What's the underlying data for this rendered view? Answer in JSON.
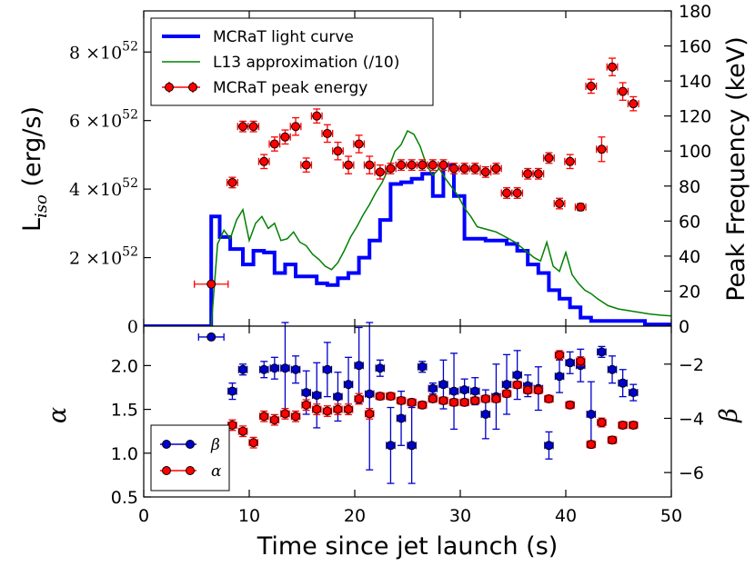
{
  "chart_data": [
    {
      "type": "line",
      "panel": "top",
      "xlabel": "Time since jet launch (s)",
      "ylabel_left": {
        "main": "L",
        "sub": "iso",
        "unit": " (erg/s)"
      },
      "ylabel_right": "Peak Frequency (keV)",
      "xlim": [
        0,
        50
      ],
      "ylim_left": [
        0,
        9.2e+52
      ],
      "ylim_right": [
        0,
        180
      ],
      "x_ticks": [
        0,
        10,
        20,
        30,
        40,
        50
      ],
      "x_tick_labels": [
        "0",
        "10",
        "20",
        "30",
        "40",
        "50"
      ],
      "left_ticks": [
        {
          "value": 0,
          "label": "0",
          "base": "",
          "exp": ""
        },
        {
          "value": 2e+52,
          "label": "",
          "base": "2 ×10",
          "exp": "52"
        },
        {
          "value": 4e+52,
          "label": "",
          "base": "4 ×10",
          "exp": "52"
        },
        {
          "value": 6e+52,
          "label": "",
          "base": "6 ×10",
          "exp": "52"
        },
        {
          "value": 8e+52,
          "label": "",
          "base": "8 ×10",
          "exp": "52"
        }
      ],
      "right_ticks": [
        0,
        20,
        40,
        60,
        80,
        100,
        120,
        140,
        160,
        180
      ],
      "right_tick_labels": [
        "0",
        "20",
        "40",
        "60",
        "80",
        "100",
        "120",
        "140",
        "160",
        "180"
      ],
      "legend": {
        "position": "top-left",
        "entries": [
          "MCRaT light curve",
          "L13 approximation (/10)",
          "MCRaT peak energy"
        ]
      },
      "series": [
        {
          "name": "MCRaT light curve",
          "style": "step",
          "color": "#0000ff",
          "axis": "left",
          "x": [
            0,
            6.4,
            6.4,
            7.2,
            7.2,
            8.2,
            8.2,
            9.4,
            9.4,
            10.4,
            10.4,
            11.4,
            11.4,
            12.4,
            12.4,
            13.4,
            13.4,
            14.4,
            14.4,
            16.4,
            16.4,
            17.4,
            17.4,
            18.4,
            18.4,
            19.4,
            19.4,
            20.4,
            20.4,
            21.4,
            21.4,
            22.4,
            22.4,
            23.4,
            23.4,
            24.4,
            24.4,
            25.4,
            25.4,
            26.4,
            26.4,
            27.4,
            27.4,
            28.4,
            28.4,
            29.4,
            29.4,
            30.4,
            30.4,
            32.4,
            32.4,
            34.4,
            34.4,
            35.4,
            35.4,
            36.4,
            36.4,
            37.4,
            37.4,
            38.4,
            38.4,
            39.4,
            39.4,
            40.4,
            40.4,
            41.4,
            41.4,
            42.4,
            42.4,
            47.5,
            47.5,
            50
          ],
          "y": [
            0,
            0,
            3.2e+52,
            3.2e+52,
            2.6e+52,
            2.6e+52,
            2.25e+52,
            2.25e+52,
            1.8e+52,
            1.8e+52,
            2.2e+52,
            2.2e+52,
            2.15e+52,
            2.15e+52,
            1.55e+52,
            1.55e+52,
            1.8e+52,
            1.8e+52,
            1.45e+52,
            1.45e+52,
            1.25e+52,
            1.25e+52,
            1.2e+52,
            1.2e+52,
            1.4e+52,
            1.4e+52,
            1.55e+52,
            1.55e+52,
            2e+52,
            2e+52,
            2.5e+52,
            2.5e+52,
            3.1e+52,
            3.1e+52,
            4.15e+52,
            4.15e+52,
            4.2e+52,
            4.2e+52,
            4.3e+52,
            4.3e+52,
            4.45e+52,
            4.45e+52,
            3.8e+52,
            3.8e+52,
            4.7e+52,
            4.7e+52,
            3.8e+52,
            3.8e+52,
            2.55e+52,
            2.55e+52,
            2.5e+52,
            2.5e+52,
            2.4e+52,
            2.4e+52,
            2.2e+52,
            2.2e+52,
            1.8e+52,
            1.8e+52,
            1.55e+52,
            1.55e+52,
            1.05e+52,
            1.05e+52,
            8e+51,
            8e+51,
            5.5e+51,
            5.5e+51,
            2.5e+51,
            2.5e+51,
            1.5e+51,
            1.5e+51,
            5e+50,
            5e+50
          ]
        },
        {
          "name": "L13 approximation (/10)",
          "style": "line",
          "color": "#008000",
          "axis": "left",
          "x": [
            6.4,
            7.0,
            7.6,
            8.2,
            8.8,
            9.4,
            10.0,
            10.6,
            11.2,
            11.8,
            12.4,
            13.0,
            13.6,
            14.2,
            14.8,
            15.4,
            16.0,
            16.6,
            17.2,
            17.8,
            18.4,
            19.0,
            19.6,
            20.2,
            20.8,
            21.4,
            22.0,
            22.6,
            23.2,
            23.8,
            24.4,
            25.0,
            25.6,
            26.2,
            26.8,
            27.4,
            28.0,
            28.6,
            29.2,
            29.8,
            30.4,
            31.0,
            31.6,
            32.2,
            32.8,
            33.4,
            34.0,
            34.6,
            35.2,
            35.8,
            36.4,
            37.0,
            37.6,
            38.2,
            38.8,
            39.4,
            40.0,
            40.6,
            41.2,
            41.8,
            42.4,
            43.0,
            44.0,
            45.0,
            46.0,
            47.0,
            48.0,
            49.0,
            50.0
          ],
          "y": [
            0,
            2.4e+52,
            2.8e+52,
            2.55e+52,
            3.1e+52,
            3.4e+52,
            2.5e+52,
            3e+52,
            3.2e+52,
            2.85e+52,
            3e+52,
            2.5e+52,
            2.55e+52,
            2.75e+52,
            2.45e+52,
            2.35e+52,
            2.1e+52,
            1.95e+52,
            1.75e+52,
            1.65e+52,
            1.85e+52,
            2.2e+52,
            2.6e+52,
            2.9e+52,
            3.25e+52,
            3.55e+52,
            3.9e+52,
            4.2e+52,
            4.6e+52,
            5.1e+52,
            5.3e+52,
            5.7e+52,
            5.6e+52,
            5.25e+52,
            4.7e+52,
            4.4e+52,
            4.6e+52,
            4.3e+52,
            4.05e+52,
            3.8e+52,
            3.45e+52,
            3.2e+52,
            2.9e+52,
            2.85e+52,
            2.8e+52,
            2.75e+52,
            2.65e+52,
            2.55e+52,
            2.45e+52,
            2.3e+52,
            2.15e+52,
            2e+52,
            1.9e+52,
            2.45e+52,
            1.75e+52,
            1.6e+52,
            2.15e+52,
            1.5e+52,
            1.25e+52,
            1.05e+52,
            9.5e+51,
            8e+51,
            6e+51,
            5e+51,
            4.5e+51,
            4e+51,
            3.5e+51,
            3.2e+51,
            3e+51
          ]
        },
        {
          "name": "MCRaT peak energy",
          "style": "errorbar",
          "color": "#ff0000",
          "axis": "right",
          "x": [
            6.4,
            8.4,
            9.4,
            10.4,
            11.4,
            12.4,
            13.4,
            14.4,
            15.4,
            16.4,
            17.4,
            18.4,
            19.4,
            20.4,
            21.4,
            22.4,
            23.4,
            24.4,
            25.4,
            26.4,
            27.4,
            28.4,
            29.4,
            30.4,
            31.4,
            32.4,
            33.4,
            34.4,
            35.4,
            36.4,
            37.4,
            38.4,
            39.4,
            40.4,
            41.4,
            42.4,
            43.4,
            44.4,
            45.4,
            46.4
          ],
          "y": [
            24,
            82,
            114,
            114,
            94,
            104,
            108,
            114,
            92,
            120,
            110,
            100,
            92,
            104,
            92,
            88,
            90,
            92,
            92,
            92,
            92,
            92,
            90,
            90,
            90,
            88,
            90,
            76,
            76,
            87,
            87,
            96,
            70,
            94,
            68,
            137,
            101,
            148,
            134,
            127
          ],
          "yerr": [
            0,
            3,
            3,
            3,
            4,
            4,
            4,
            5,
            4,
            4,
            5,
            5,
            5,
            5,
            5,
            4,
            3,
            3,
            3,
            3,
            3,
            3,
            3,
            3,
            3,
            3,
            3,
            3,
            3,
            3,
            3,
            3,
            3,
            4,
            2,
            4,
            7,
            5,
            5,
            4
          ],
          "xerr": [
            1.6,
            0.5,
            0.5,
            0.5,
            0.5,
            0.5,
            0.5,
            0.5,
            0.5,
            0.5,
            0.5,
            0.5,
            0.5,
            0.5,
            0.5,
            0.5,
            0.5,
            0.5,
            0.5,
            0.5,
            0.5,
            0.5,
            0.5,
            0.5,
            0.5,
            0.5,
            0.5,
            0.5,
            0.5,
            0.5,
            0.5,
            0.5,
            0.5,
            0.5,
            0.5,
            0.5,
            0.5,
            0.5,
            0.5,
            0.5
          ]
        }
      ]
    },
    {
      "type": "scatter",
      "panel": "bottom",
      "xlabel": "Time since jet launch (s)",
      "ylabel_left": "α",
      "ylabel_right": "β",
      "xlim": [
        0,
        50
      ],
      "ylim_left": [
        0.5,
        2.45
      ],
      "ylim_right": [
        -6.9,
        -0.6
      ],
      "x_ticks": [
        0,
        10,
        20,
        30,
        40,
        50
      ],
      "x_tick_labels": [
        "0",
        "10",
        "20",
        "30",
        "40",
        "50"
      ],
      "left_ticks": [
        0.5,
        1.0,
        1.5,
        2.0
      ],
      "left_tick_labels": [
        "0.5",
        "1.0",
        "1.5",
        "2.0"
      ],
      "right_ticks": [
        -6,
        -4,
        -2
      ],
      "right_tick_labels": [
        "−6",
        "−4",
        "−2"
      ],
      "legend": {
        "position": "bottom-left",
        "entries": [
          "β",
          "α"
        ]
      },
      "series": [
        {
          "name": "β",
          "style": "errorbar",
          "color": "#0000cc",
          "axis": "right",
          "x": [
            6.4,
            8.4,
            9.4,
            11.4,
            12.4,
            13.4,
            14.4,
            15.4,
            16.4,
            17.4,
            18.4,
            19.4,
            20.4,
            21.4,
            22.4,
            23.4,
            24.4,
            25.4,
            26.4,
            27.4,
            28.4,
            29.4,
            30.4,
            31.4,
            32.4,
            33.4,
            34.4,
            35.4,
            36.4,
            37.4,
            38.4,
            39.4,
            40.4,
            41.4,
            42.4,
            43.4,
            44.4,
            45.4,
            46.4
          ],
          "y": [
            -1.0,
            -3.0,
            -2.2,
            -2.2,
            -2.15,
            -2.15,
            -2.2,
            -3.05,
            -3.15,
            -2.2,
            -3.2,
            -2.75,
            -2.05,
            -3.1,
            -2.15,
            -5.0,
            -4.0,
            -5.0,
            -2.1,
            -2.9,
            -2.75,
            -3.0,
            -2.95,
            -3.0,
            -3.85,
            -3.2,
            -2.75,
            -2.4,
            -2.8,
            -2.9,
            -5.0,
            -2.45,
            -1.95,
            -2.05,
            -3.85,
            -1.55,
            -2.2,
            -2.7,
            -3.05
          ],
          "yerr": [
            0,
            0.3,
            0.2,
            0.3,
            0.4,
            1.7,
            0.5,
            0.8,
            1.2,
            1.0,
            0.9,
            1.0,
            1.4,
            2.8,
            0.3,
            1.4,
            1.0,
            1.4,
            0.2,
            0.2,
            0.9,
            1.4,
            0.4,
            0.5,
            0.9,
            1.2,
            1.1,
            0.9,
            0.4,
            0.8,
            0.5,
            0.6,
            0.4,
            0.6,
            1.2,
            0.2,
            0.5,
            0.5,
            0.3
          ],
          "xerr": [
            1.2,
            0.4,
            0.4,
            0.4,
            0.4,
            0.4,
            0.4,
            0.4,
            0.4,
            0.4,
            0.4,
            0.4,
            0.4,
            0.4,
            0.4,
            0.4,
            0.4,
            0.4,
            0.4,
            0.4,
            0.4,
            0.4,
            0.4,
            0.4,
            0.4,
            0.4,
            0.4,
            0.4,
            0.4,
            0.4,
            0.4,
            0.4,
            0.4,
            0.4,
            0.4,
            0.4,
            0.4,
            0.4,
            0.4
          ]
        },
        {
          "name": "α",
          "style": "errorbar",
          "color": "#ff0000",
          "axis": "left",
          "x": [
            8.4,
            9.4,
            10.4,
            11.4,
            12.4,
            13.4,
            14.4,
            15.4,
            16.4,
            17.4,
            18.4,
            19.4,
            20.4,
            21.4,
            22.4,
            23.4,
            24.4,
            25.4,
            26.4,
            27.4,
            28.4,
            29.4,
            30.4,
            31.4,
            32.4,
            33.4,
            34.4,
            35.4,
            36.4,
            37.4,
            38.4,
            39.4,
            40.4,
            41.4,
            42.4,
            43.4,
            44.4,
            45.4,
            46.4
          ],
          "y": [
            1.32,
            1.25,
            1.12,
            1.42,
            1.38,
            1.45,
            1.42,
            1.55,
            1.5,
            1.48,
            1.5,
            1.5,
            1.62,
            1.45,
            1.65,
            1.65,
            1.6,
            1.58,
            1.55,
            1.62,
            1.6,
            1.58,
            1.58,
            1.6,
            1.62,
            1.62,
            1.68,
            1.78,
            1.72,
            1.72,
            1.62,
            2.12,
            1.55,
            2.05,
            1.1,
            1.35,
            1.15,
            1.32,
            1.32
          ],
          "yerr": [
            0.06,
            0.06,
            0.06,
            0.06,
            0.06,
            0.06,
            0.06,
            0.06,
            0.06,
            0.06,
            0.06,
            0.06,
            0.06,
            0.06,
            0.04,
            0.04,
            0.04,
            0.04,
            0.04,
            0.04,
            0.04,
            0.04,
            0.04,
            0.04,
            0.04,
            0.04,
            0.04,
            0.04,
            0.04,
            0.04,
            0.04,
            0.05,
            0.04,
            0.05,
            0.04,
            0.05,
            0.04,
            0.04,
            0.04
          ],
          "xerr": [
            0.4,
            0.4,
            0.4,
            0.4,
            0.4,
            0.4,
            0.4,
            0.4,
            0.4,
            0.4,
            0.4,
            0.4,
            0.4,
            0.4,
            0.4,
            0.4,
            0.4,
            0.4,
            0.4,
            0.4,
            0.4,
            0.4,
            0.4,
            0.4,
            0.4,
            0.4,
            0.4,
            0.4,
            0.4,
            0.4,
            0.4,
            0.4,
            0.4,
            0.4,
            0.4,
            0.4,
            0.4,
            0.4,
            0.4
          ]
        }
      ]
    }
  ]
}
